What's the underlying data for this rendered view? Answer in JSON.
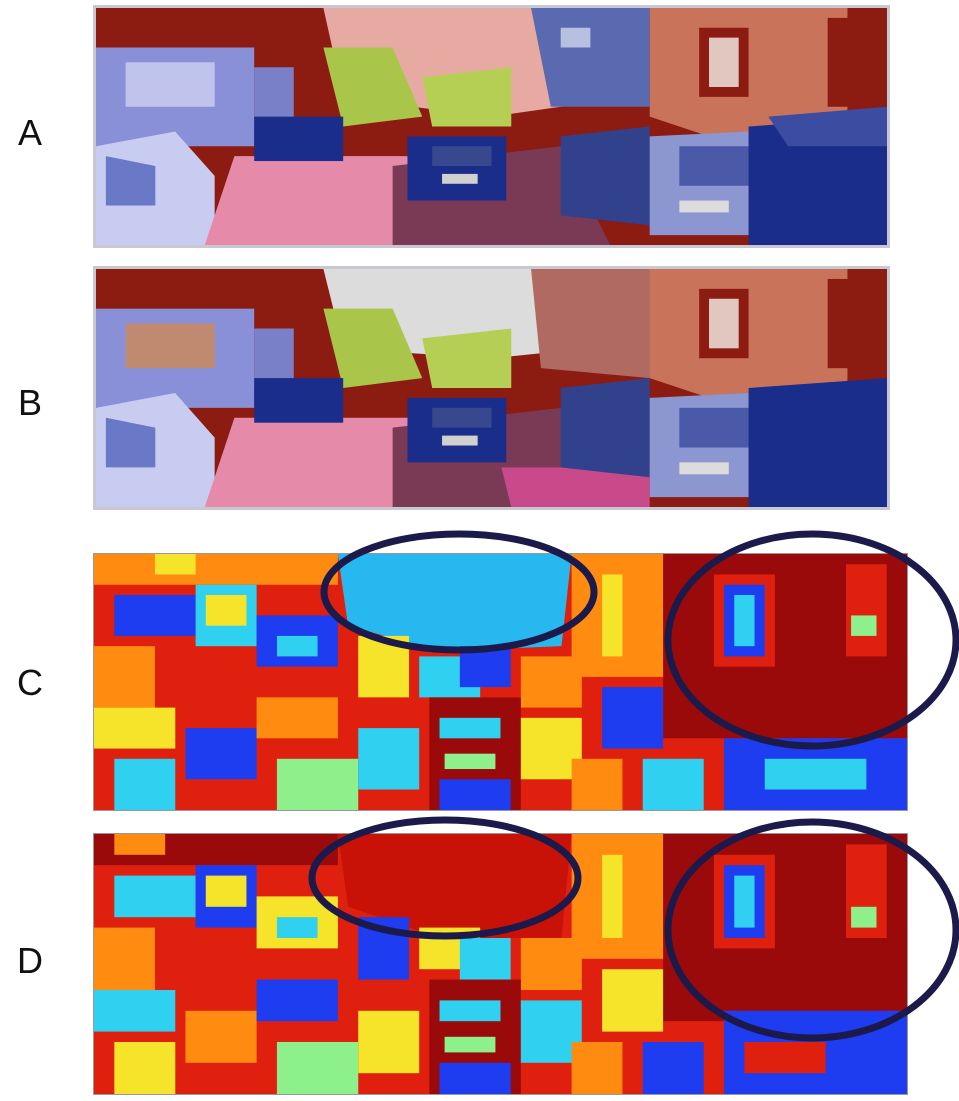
{
  "rows": [
    {
      "label": "A"
    },
    {
      "label": "B"
    },
    {
      "label": "C"
    },
    {
      "label": "D"
    }
  ],
  "colors": {
    "sky_overlay_a": "#e7aaa3",
    "building_overlay": "#8c1b12",
    "vehicle_overlay": "#1b2d8a",
    "vegetation_overlay": "#a9c64a",
    "sidewalk_overlay": "#e58aa8",
    "road_overlay": "#7a3a55",
    "facade_overlay": "#c9745a",
    "sky_overlay_b": "#dcdcdc",
    "ellipse_stroke": "#1c1a4a",
    "segment_red": "#e0200f",
    "segment_darkred": "#9b0a0a",
    "segment_orange": "#ff8c10",
    "segment_yellow": "#f5e42a",
    "segment_cyan": "#2fd0f0",
    "segment_blue": "#1e3cf0",
    "segment_green": "#8ef08a",
    "segment_sky": "#28b8f0"
  }
}
